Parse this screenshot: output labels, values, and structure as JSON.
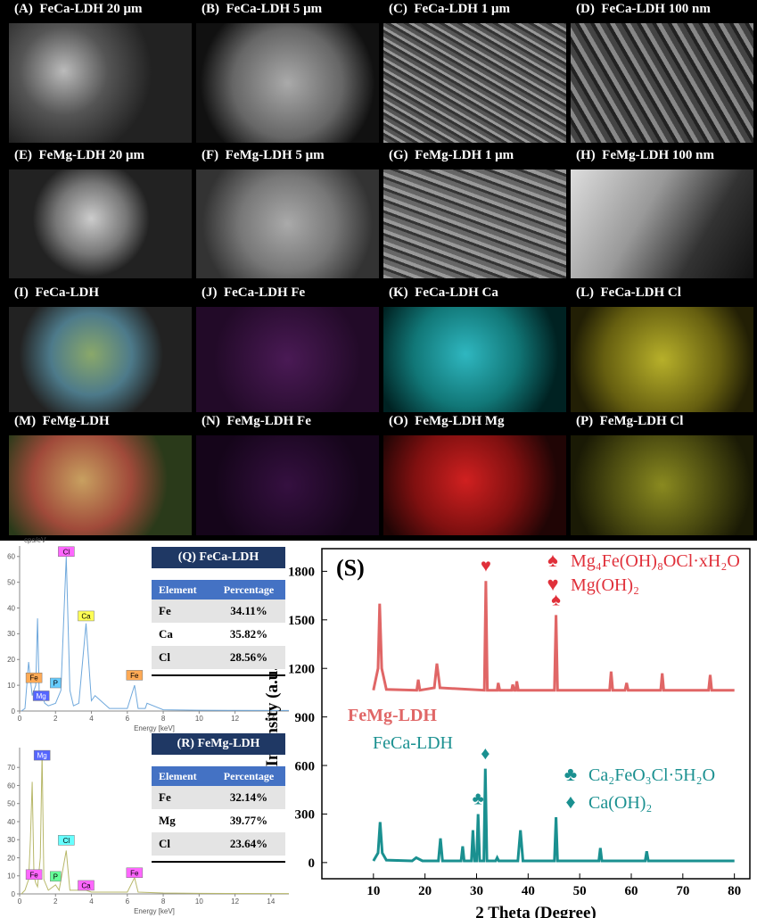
{
  "panels": [
    {
      "label": "(A)  FeCa-LDH 20 μm"
    },
    {
      "label": "(B)  FeCa-LDH 5 μm"
    },
    {
      "label": "(C)  FeCa-LDH 1 μm"
    },
    {
      "label": "(D)  FeCa-LDH 100 nm"
    },
    {
      "label": "(E)  FeMg-LDH 20 μm"
    },
    {
      "label": "(F)  FeMg-LDH 5 μm"
    },
    {
      "label": "(G)  FeMg-LDH 1 μm"
    },
    {
      "label": "(H)  FeMg-LDH 100 nm"
    },
    {
      "label": "(I)  FeCa-LDH"
    },
    {
      "label": "(J)  FeCa-LDH Fe"
    },
    {
      "label": "(K)  FeCa-LDH Ca"
    },
    {
      "label": "(L)  FeCa-LDH Cl"
    },
    {
      "label": "(M)  FeMg-LDH"
    },
    {
      "label": "(N)  FeMg-LDH Fe"
    },
    {
      "label": "(O)  FeMg-LDH Mg"
    },
    {
      "label": "(P)  FeMg-LDH Cl"
    }
  ],
  "tables": [
    {
      "title": "(Q) FeCa-LDH",
      "header": [
        "Element",
        "Percentage"
      ],
      "rows": [
        [
          "Fe",
          "34.11%"
        ],
        [
          "Ca",
          "35.82%"
        ],
        [
          "Cl",
          "28.56%"
        ]
      ]
    },
    {
      "title": "(R) FeMg-LDH",
      "header": [
        "Element",
        "Percentage"
      ],
      "rows": [
        [
          "Fe",
          "32.14%"
        ],
        [
          "Mg",
          "39.77%"
        ],
        [
          "Cl",
          "23.64%"
        ]
      ]
    }
  ],
  "chart_data": [
    {
      "type": "line",
      "ylabel": "cps/eV",
      "xlabel": "Energy [keV]",
      "xlim": [
        0,
        15
      ],
      "xticks": [
        0,
        2,
        4,
        6,
        8,
        10,
        12,
        14
      ],
      "ylim": [
        0,
        62
      ],
      "yticks": [
        0,
        10,
        20,
        30,
        40,
        50,
        60
      ],
      "series": [
        {
          "color": "#6fa8dc",
          "x": [
            0.1,
            0.3,
            0.5,
            0.7,
            0.9,
            1.0,
            1.1,
            1.25,
            1.4,
            1.6,
            2.0,
            2.3,
            2.6,
            2.8,
            3.0,
            3.3,
            3.7,
            4.0,
            4.2,
            5,
            6.0,
            6.4,
            6.6,
            7.0,
            7.1,
            8,
            10,
            15
          ],
          "values": [
            0,
            1,
            19,
            6,
            10,
            36,
            5,
            6,
            3,
            2,
            3,
            8,
            60,
            8,
            2,
            3,
            34,
            4,
            6,
            1,
            1,
            10,
            1,
            1,
            3,
            0.5,
            0.3,
            0.2
          ]
        }
      ],
      "annotations": [
        {
          "text": "Cl",
          "x": 2.6,
          "y": 60,
          "color": "#ff66ff"
        },
        {
          "text": "Ca",
          "x": 3.7,
          "y": 35,
          "color": "#ffff55"
        },
        {
          "text": "Fe",
          "x": 0.8,
          "y": 11,
          "color": "#ffaa55"
        },
        {
          "text": "Fe",
          "x": 6.4,
          "y": 12,
          "color": "#ffaa55"
        },
        {
          "text": "Mg",
          "x": 1.2,
          "y": 4,
          "color": "#5566ff"
        },
        {
          "text": "P",
          "x": 2.0,
          "y": 9,
          "color": "#66ccff"
        }
      ]
    },
    {
      "type": "line",
      "xlabel": "Energy [keV]",
      "xlim": [
        0,
        15
      ],
      "xticks": [
        0,
        2,
        4,
        6,
        8,
        10,
        12,
        14
      ],
      "ylim": [
        0,
        78
      ],
      "yticks": [
        0,
        10,
        20,
        30,
        40,
        50,
        60,
        70
      ],
      "series": [
        {
          "color": "#b8b86a",
          "x": [
            0.1,
            0.3,
            0.5,
            0.6,
            0.7,
            0.8,
            0.9,
            1.0,
            1.15,
            1.25,
            1.35,
            1.6,
            2.0,
            2.2,
            2.6,
            2.8,
            3.7,
            4.0,
            6.0,
            6.4,
            6.6,
            8,
            10,
            15
          ],
          "values": [
            0,
            2,
            8,
            30,
            62,
            10,
            6,
            4,
            20,
            78,
            8,
            2,
            5,
            2,
            24,
            2,
            2,
            1,
            1,
            9,
            1,
            0.5,
            0.3,
            0.2
          ]
        }
      ],
      "annotations": [
        {
          "text": "Mg",
          "x": 1.25,
          "y": 74,
          "color": "#5566ff"
        },
        {
          "text": "Cl",
          "x": 2.6,
          "y": 27,
          "color": "#66ffff"
        },
        {
          "text": "Fe",
          "x": 0.8,
          "y": 8,
          "color": "#ff66ff"
        },
        {
          "text": "P",
          "x": 2.0,
          "y": 7,
          "color": "#66ff99"
        },
        {
          "text": "Ca",
          "x": 3.7,
          "y": 2,
          "color": "#ff66ff"
        },
        {
          "text": "Fe",
          "x": 6.4,
          "y": 9,
          "color": "#ff66ff"
        }
      ]
    },
    {
      "type": "line",
      "label": "(S)",
      "xlabel": "2 Theta (Degree)",
      "ylabel": "Intensity (a.u.)",
      "xlim": [
        0,
        83
      ],
      "xticks": [
        10,
        20,
        30,
        40,
        50,
        60,
        70,
        80
      ],
      "ylim": [
        -100,
        1940
      ],
      "yticks": [
        0,
        300,
        600,
        900,
        1200,
        1500,
        1800
      ],
      "series": [
        {
          "name": "FeMg-LDH",
          "color": "#e06666",
          "x": [
            10,
            10.9,
            11.2,
            11.6,
            12.5,
            18.4,
            18.7,
            19.0,
            21.8,
            22.3,
            22.9,
            31.5,
            31.8,
            32.1,
            34.0,
            34.2,
            34.5,
            36.8,
            37.0,
            37.3,
            37.6,
            37.8,
            38.1,
            45.1,
            45.4,
            45.7,
            55.8,
            56.1,
            56.4,
            58.8,
            59.1,
            59.4,
            65.7,
            66.0,
            66.3,
            75.0,
            75.3,
            75.6,
            80
          ],
          "values": [
            1065,
            1200,
            1600,
            1200,
            1070,
            1065,
            1130,
            1065,
            1080,
            1230,
            1080,
            1065,
            1740,
            1065,
            1065,
            1110,
            1065,
            1065,
            1100,
            1065,
            1065,
            1120,
            1065,
            1065,
            1530,
            1065,
            1065,
            1180,
            1065,
            1065,
            1110,
            1065,
            1065,
            1170,
            1065,
            1065,
            1160,
            1065,
            1065
          ]
        },
        {
          "name": "FeCa-LDH",
          "color": "#1a9090",
          "x": [
            10,
            10.9,
            11.3,
            11.7,
            12.5,
            17.5,
            18.3,
            19.5,
            22.6,
            23.0,
            23.4,
            27.0,
            27.3,
            27.6,
            29.0,
            29.3,
            29.6,
            30.0,
            30.3,
            30.6,
            31.4,
            31.7,
            32.0,
            33.7,
            34.0,
            34.3,
            38.0,
            38.5,
            39.0,
            45.1,
            45.4,
            45.7,
            53.7,
            54.0,
            54.3,
            62.7,
            63.0,
            63.3,
            80
          ],
          "values": [
            10,
            60,
            250,
            60,
            15,
            10,
            30,
            10,
            10,
            150,
            10,
            10,
            100,
            10,
            10,
            200,
            10,
            10,
            300,
            10,
            10,
            580,
            10,
            10,
            30,
            10,
            10,
            200,
            10,
            10,
            280,
            10,
            10,
            90,
            10,
            10,
            70,
            10,
            10
          ]
        }
      ],
      "annotations": [
        {
          "text": "♥",
          "x": 31.8,
          "y": 1800,
          "color": "#e0303a"
        },
        {
          "text": "♠",
          "x": 45.4,
          "y": 1590,
          "color": "#e0303a"
        },
        {
          "text": "♣",
          "x": 30.3,
          "y": 360,
          "color": "#1a9090"
        },
        {
          "text": "♦",
          "x": 31.7,
          "y": 640,
          "color": "#1a9090"
        }
      ],
      "legend": [
        {
          "symbol": "♠",
          "text": "Mg₄Fe(OH)₈OCl·xH₂O",
          "color": "#e0303a"
        },
        {
          "symbol": "♥",
          "text": "Mg(OH)₂",
          "color": "#e0303a"
        },
        {
          "symbol": "♣",
          "text": "Ca₂FeO₃Cl·5H₂O",
          "color": "#1a9090"
        },
        {
          "symbol": "♦",
          "text": "Ca(OH)₂",
          "color": "#1a9090"
        }
      ]
    }
  ]
}
